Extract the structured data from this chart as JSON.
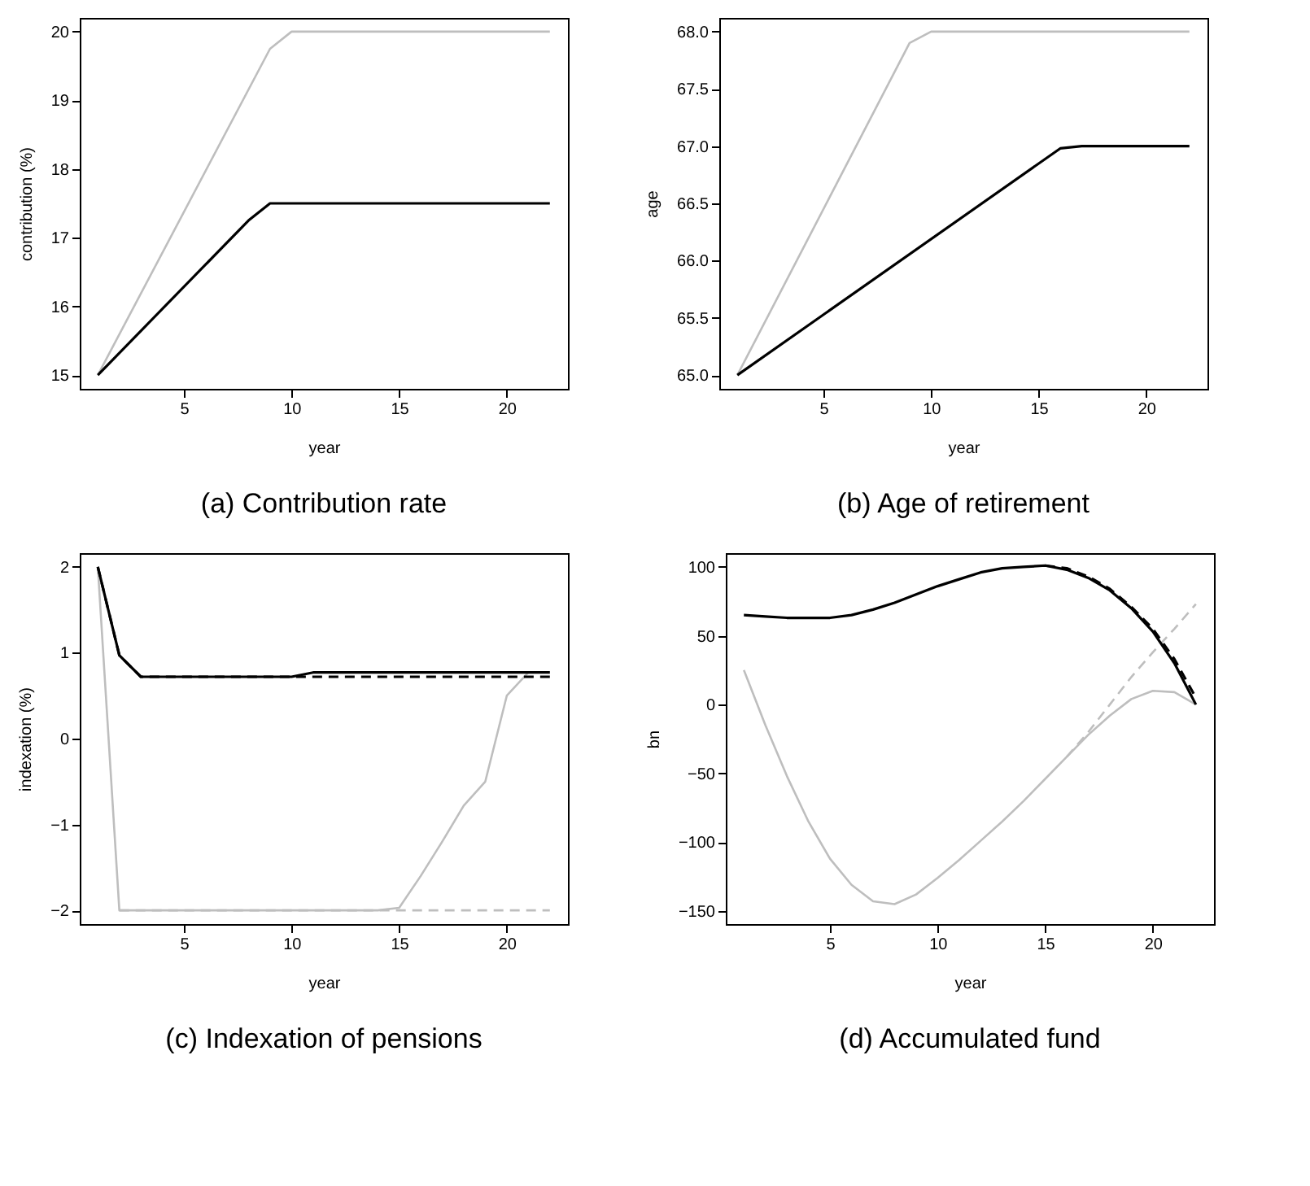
{
  "chart_data": [
    {
      "type": "line",
      "title": "(a) Contribution rate",
      "xlabel": "year",
      "ylabel": "contribution (%)",
      "xlim": [
        0.16,
        22.84
      ],
      "xticks": [
        5,
        10,
        15,
        20
      ],
      "ylim": [
        14.8,
        20.2
      ],
      "yticks": [
        15,
        16,
        17,
        18,
        19,
        20
      ],
      "grid": false,
      "legend": false,
      "marker": "none",
      "series": [
        {
          "color": "#bebebe",
          "line_style": "solid",
          "x": [
            1,
            9,
            10,
            22
          ],
          "values": [
            15,
            19.75,
            20,
            20
          ]
        },
        {
          "color": "#000000",
          "line_style": "solid",
          "x": [
            1,
            8,
            9,
            22
          ],
          "values": [
            15,
            17.25,
            17.5,
            17.5
          ]
        }
      ]
    },
    {
      "type": "line",
      "title": "(b) Age of retirement",
      "xlabel": "year",
      "ylabel": "age",
      "xlim": [
        0.16,
        22.84
      ],
      "xticks": [
        5,
        10,
        15,
        20
      ],
      "ylim": [
        64.88,
        68.12
      ],
      "yticks": [
        {
          "value": 65,
          "label": "65.0"
        },
        65.5,
        {
          "value": 66,
          "label": "66.0"
        },
        66.5,
        {
          "value": 67,
          "label": "67.0"
        },
        67.5,
        {
          "value": 68,
          "label": "68.0"
        }
      ],
      "grid": false,
      "legend": false,
      "marker": "none",
      "series": [
        {
          "color": "#bebebe",
          "line_style": "solid",
          "x": [
            1,
            9,
            10,
            22
          ],
          "values": [
            65,
            67.9,
            68,
            68
          ]
        },
        {
          "color": "#000000",
          "line_style": "solid",
          "x": [
            1,
            16,
            17,
            22
          ],
          "values": [
            65,
            66.98,
            67,
            67
          ]
        }
      ]
    },
    {
      "type": "line",
      "title": "(c) Indexation of pensions",
      "xlabel": "year",
      "ylabel": "indexation (%)",
      "xlim": [
        0.16,
        22.84
      ],
      "xticks": [
        5,
        10,
        15,
        20
      ],
      "ylim": [
        -2.16,
        2.16
      ],
      "yticks": [
        {
          "value": -2,
          "label": "−2"
        },
        {
          "value": -1,
          "label": "−1"
        },
        0,
        1,
        2
      ],
      "grid": false,
      "legend": false,
      "marker": "none",
      "series": [
        {
          "color": "#bebebe",
          "line_style": "dashed",
          "x": [
            2,
            22
          ],
          "values": [
            -2,
            -2
          ]
        },
        {
          "color": "#bebebe",
          "line_style": "solid",
          "x": [
            1,
            2,
            14,
            15,
            16,
            17,
            18,
            19,
            20,
            21,
            22
          ],
          "values": [
            2,
            -2,
            -2,
            -1.97,
            -1.6,
            -1.2,
            -0.78,
            -0.5,
            0.5,
            0.77,
            0.77
          ]
        },
        {
          "color": "#000000",
          "line_style": "dashed",
          "x": [
            1,
            2,
            3,
            22
          ],
          "values": [
            2,
            0.97,
            0.72,
            0.72
          ]
        },
        {
          "color": "#000000",
          "line_style": "solid",
          "x": [
            1,
            2,
            3,
            10,
            11,
            22
          ],
          "values": [
            2,
            0.97,
            0.72,
            0.72,
            0.77,
            0.77
          ]
        }
      ]
    },
    {
      "type": "line",
      "title": "(d) Accumulated fund",
      "xlabel": "year",
      "ylabel": "bn",
      "xlim": [
        0.16,
        22.84
      ],
      "xticks": [
        5,
        10,
        15,
        20
      ],
      "ylim": [
        -159.5,
        110
      ],
      "yticks": [
        {
          "value": -150,
          "label": "−150"
        },
        {
          "value": -100,
          "label": "−100"
        },
        {
          "value": -50,
          "label": "−50"
        },
        0,
        50,
        100
      ],
      "grid": false,
      "legend": false,
      "marker": "none",
      "series": [
        {
          "color": "#bebebe",
          "line_style": "dashed",
          "x": [
            16,
            17,
            18,
            19,
            20,
            21,
            22
          ],
          "values": [
            -38,
            -20,
            0,
            20,
            38,
            55,
            73
          ]
        },
        {
          "color": "#bebebe",
          "line_style": "solid",
          "x": [
            1,
            2,
            3,
            4,
            5,
            6,
            7,
            8,
            9,
            10,
            11,
            12,
            13,
            14,
            15,
            16,
            17,
            18,
            19,
            20,
            21,
            22
          ],
          "values": [
            25,
            -15,
            -52,
            -85,
            -112,
            -131,
            -143,
            -145,
            -138,
            -126,
            -113,
            -99,
            -85,
            -70,
            -54,
            -38,
            -22,
            -8,
            4,
            10,
            9,
            0
          ]
        },
        {
          "color": "#000000",
          "line_style": "dashed",
          "x": [
            15,
            16,
            17,
            18,
            19,
            20,
            21,
            22
          ],
          "values": [
            101,
            99,
            93,
            84,
            71,
            55,
            33,
            5
          ]
        },
        {
          "color": "#000000",
          "line_style": "solid",
          "x": [
            1,
            2,
            3,
            4,
            5,
            6,
            7,
            8,
            9,
            10,
            11,
            12,
            13,
            14,
            15,
            16,
            17,
            18,
            19,
            20,
            21,
            22
          ],
          "values": [
            65,
            64,
            63,
            63,
            63,
            65,
            69,
            74,
            80,
            86,
            91,
            96,
            99,
            100,
            101,
            98,
            92,
            83,
            70,
            53,
            30,
            0
          ]
        }
      ]
    }
  ]
}
